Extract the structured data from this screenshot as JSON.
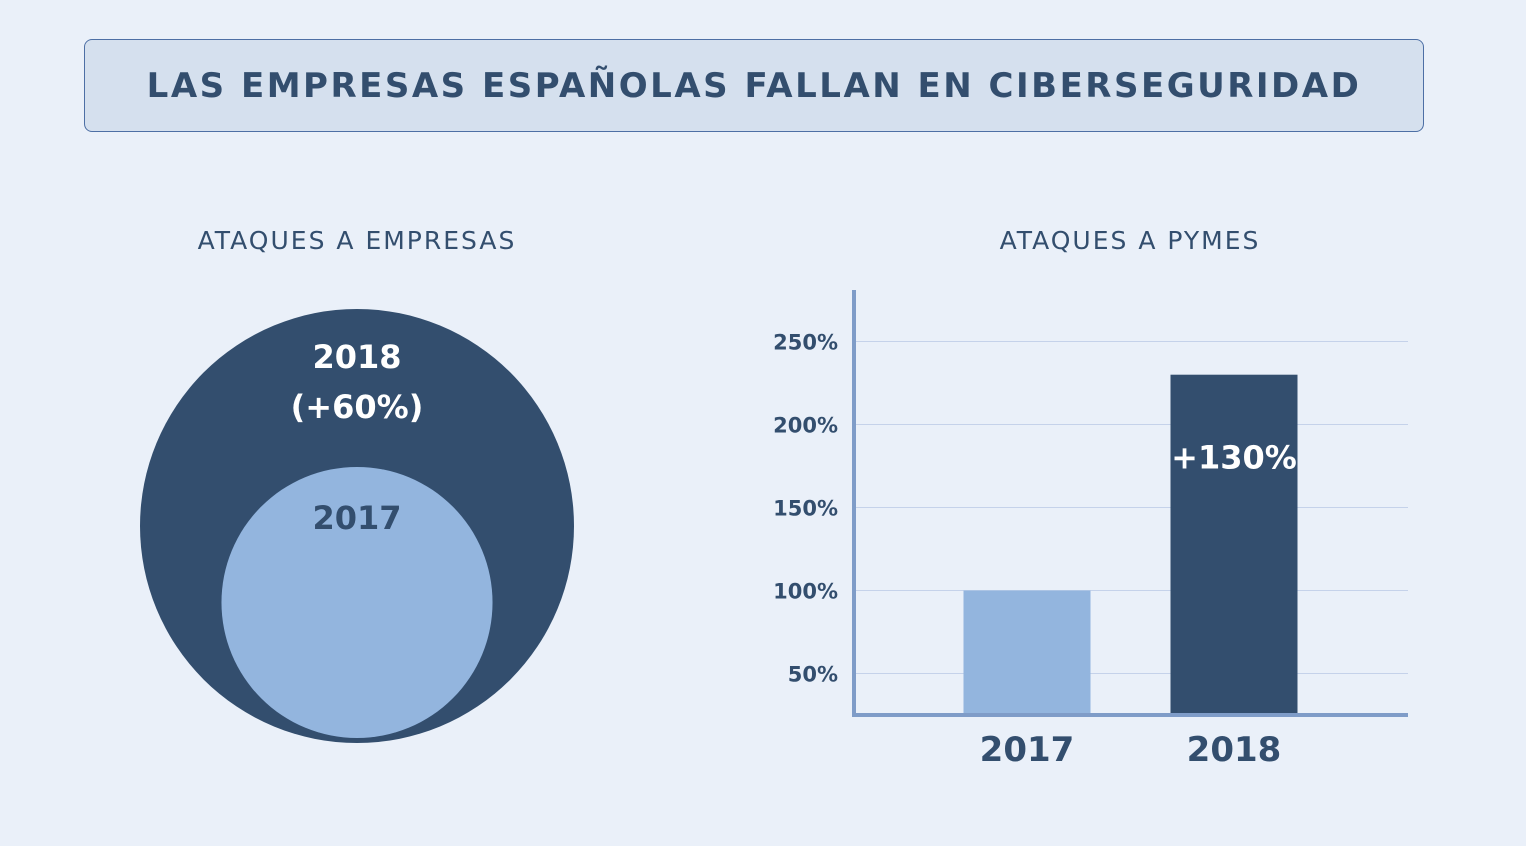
{
  "header": {
    "title": "LAS EMPRESAS ESPAÑOLAS FALLAN EN CIBERSEGURIDAD"
  },
  "colors": {
    "background": "#eaf0f9",
    "dark": "#334e6e",
    "light": "#93b5de",
    "grid": "#c5d2ea",
    "axis": "#7f9cc8"
  },
  "chart_data": [
    {
      "type": "bubble",
      "title": "ATAQUES A EMPRESAS",
      "series": [
        {
          "name": "2018",
          "label": "2018",
          "sub_label": "(+60%)",
          "value": 160,
          "color": "#334e6e"
        },
        {
          "name": "2017",
          "label": "2017",
          "value": 100,
          "color": "#93b5de"
        }
      ]
    },
    {
      "type": "bar",
      "title": "ATAQUES A PYMES",
      "categories": [
        "2017",
        "2018"
      ],
      "values": [
        100,
        230
      ],
      "colors": [
        "#93b5de",
        "#334e6e"
      ],
      "data_labels": [
        "",
        "+130%"
      ],
      "yticks": [
        50,
        100,
        150,
        200,
        250
      ],
      "ytick_labels": [
        "50%",
        "100%",
        "150%",
        "200%",
        "250%"
      ],
      "ylim": [
        25,
        280
      ],
      "grid": true
    }
  ]
}
